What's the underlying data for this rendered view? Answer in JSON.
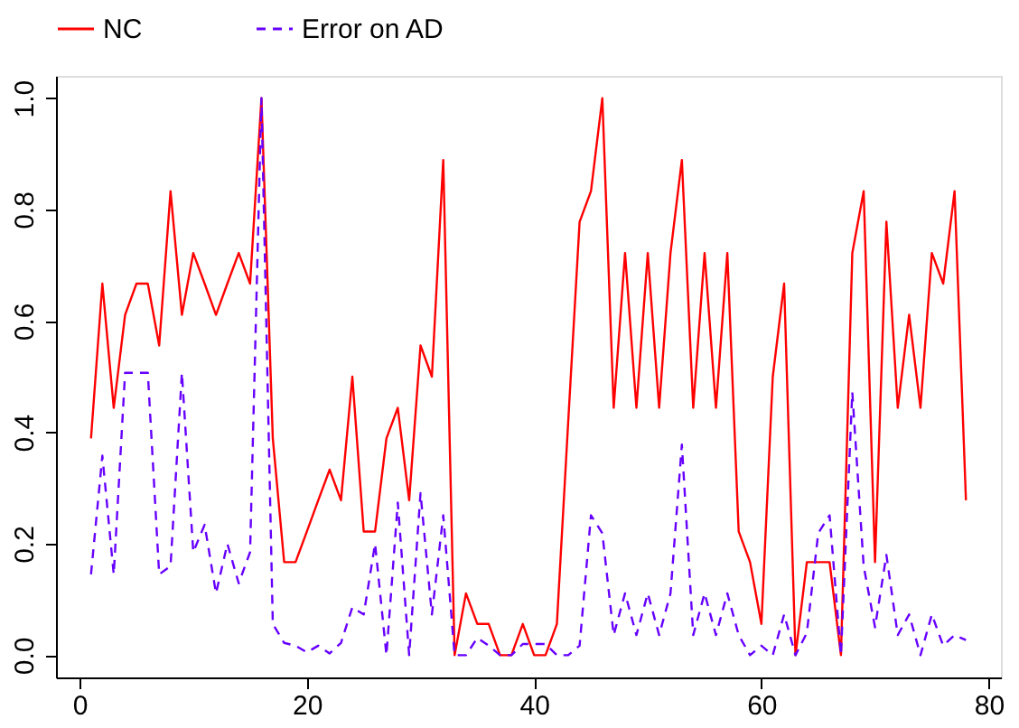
{
  "chart_data": {
    "type": "line",
    "x": [
      1,
      2,
      3,
      4,
      5,
      6,
      7,
      8,
      9,
      10,
      11,
      12,
      13,
      14,
      15,
      16,
      17,
      18,
      19,
      20,
      21,
      22,
      23,
      24,
      25,
      26,
      27,
      28,
      29,
      30,
      31,
      32,
      33,
      34,
      35,
      36,
      37,
      38,
      39,
      40,
      41,
      42,
      43,
      44,
      45,
      46,
      47,
      48,
      49,
      50,
      51,
      52,
      53,
      54,
      55,
      56,
      57,
      58,
      59,
      60,
      61,
      62,
      63,
      64,
      65,
      66,
      67,
      68,
      69,
      70,
      71,
      72,
      73,
      74,
      75,
      76,
      77,
      78
    ],
    "series": [
      {
        "name": "NC",
        "color": "#ff0000",
        "line_style": "solid",
        "values": [
          0.389,
          0.667,
          0.444,
          0.611,
          0.667,
          0.667,
          0.556,
          0.833,
          0.611,
          0.722,
          0.667,
          0.611,
          0.667,
          0.722,
          0.667,
          1.0,
          0.389,
          0.167,
          0.167,
          0.222,
          0.278,
          0.333,
          0.278,
          0.5,
          0.222,
          0.222,
          0.389,
          0.444,
          0.278,
          0.556,
          0.5,
          0.889,
          0,
          0.111,
          0.056,
          0.056,
          0,
          0,
          0.056,
          0,
          0,
          0.056,
          0.42,
          0.778,
          0.833,
          1.0,
          0.444,
          0.722,
          0.444,
          0.722,
          0.444,
          0.722,
          0.889,
          0.444,
          0.722,
          0.444,
          0.722,
          0.222,
          0.167,
          0.056,
          0.5,
          0.667,
          0,
          0.167,
          0.167,
          0.167,
          0,
          0.722,
          0.833,
          0.167,
          0.778,
          0.444,
          0.611,
          0.444,
          0.722,
          0.667,
          0.833,
          0.278
        ]
      },
      {
        "name": "Error on AD",
        "color": "#6600ff",
        "line_style": "dashed",
        "values": [
          0.145,
          0.358,
          0.145,
          0.507,
          0.507,
          0.507,
          0.145,
          0.16,
          0.507,
          0.185,
          0.234,
          0.111,
          0.2,
          0.129,
          0.185,
          1.0,
          0.056,
          0.022,
          0.017,
          0.005,
          0.017,
          0.003,
          0.022,
          0.086,
          0.073,
          0.2,
          0,
          0.274,
          0,
          0.291,
          0.073,
          0.251,
          0,
          0,
          0.031,
          0.017,
          0,
          0,
          0.02,
          0.02,
          0.02,
          0,
          0,
          0.017,
          0.251,
          0.219,
          0.036,
          0.111,
          0.036,
          0.111,
          0.036,
          0.111,
          0.378,
          0.036,
          0.111,
          0.036,
          0.111,
          0.036,
          0,
          0.017,
          0,
          0.073,
          0,
          0.04,
          0.219,
          0.251,
          0,
          0.472,
          0.16,
          0.05,
          0.18,
          0.036,
          0.073,
          0,
          0.073,
          0.017,
          0.036,
          0.027
        ]
      }
    ],
    "xlim": [
      -2.08,
      81.08
    ],
    "xticks": [
      0,
      20,
      40,
      60,
      80
    ],
    "ylim": [
      -0.04,
      1.04
    ],
    "yticks": [
      {
        "value": 0,
        "label": "0.0"
      },
      {
        "value": 0.2,
        "label": "0.2"
      },
      {
        "value": 0.4,
        "label": "0.4"
      },
      {
        "value": 0.6,
        "label": "0.6"
      },
      {
        "value": 0.8,
        "label": "0.8"
      },
      {
        "value": 1.0,
        "label": "1.0"
      }
    ],
    "grid": false,
    "legend": "top"
  }
}
